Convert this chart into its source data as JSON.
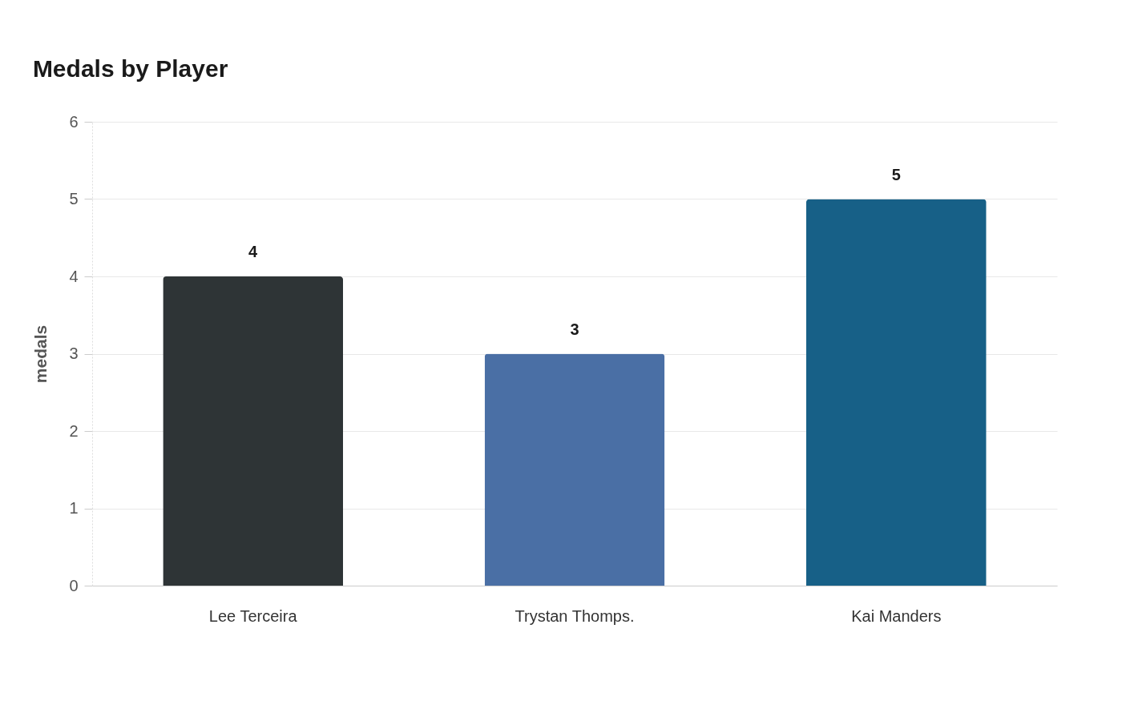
{
  "chart_data": {
    "type": "bar",
    "title": "Medals by Player",
    "ylabel": "medals",
    "categories": [
      "Lee Terceira",
      "Trystan Thomps.",
      "Kai Manders"
    ],
    "values": [
      4,
      3,
      5
    ],
    "colors": [
      "#2e3436",
      "#4a6fa5",
      "#176087"
    ],
    "ylim": [
      0,
      6
    ],
    "yticks": [
      0,
      1,
      2,
      3,
      4,
      5,
      6
    ],
    "grid": "y",
    "data_labels": true,
    "legend": false
  }
}
